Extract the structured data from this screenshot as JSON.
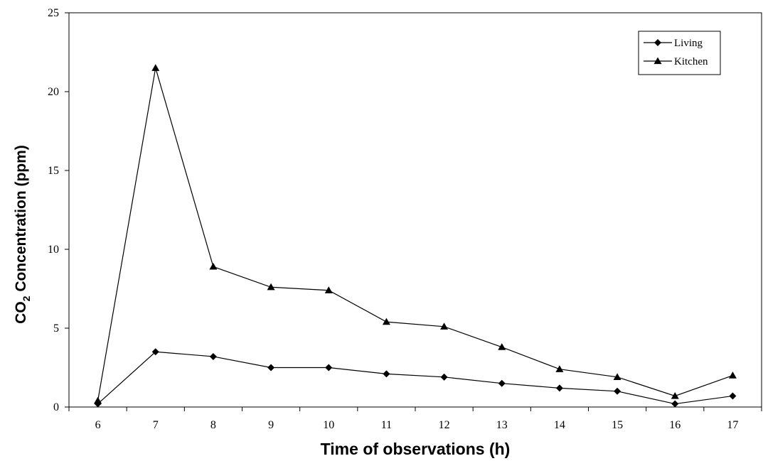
{
  "chart_data": {
    "type": "line",
    "x": [
      6,
      7,
      8,
      9,
      10,
      11,
      12,
      13,
      14,
      15,
      16,
      17
    ],
    "series": [
      {
        "name": "Living",
        "marker": "diamond",
        "values": [
          0.2,
          3.5,
          3.2,
          2.5,
          2.5,
          2.1,
          1.9,
          1.5,
          1.2,
          1.0,
          0.2,
          0.7
        ]
      },
      {
        "name": "Kitchen",
        "marker": "triangle",
        "values": [
          0.4,
          21.5,
          8.9,
          7.6,
          7.4,
          5.4,
          5.1,
          3.8,
          2.4,
          1.9,
          0.7,
          2.0
        ]
      }
    ],
    "xlabel": "Time of observations (h)",
    "ylabel_main": "CO",
    "ylabel_sub": "2",
    "ylabel_rest": " Concentration (ppm)",
    "ylim": [
      0,
      25
    ],
    "yticks": [
      0,
      5,
      10,
      15,
      20,
      25
    ],
    "xticks": [
      "6",
      "7",
      "8",
      "9",
      "10",
      "11",
      "12",
      "13",
      "14",
      "15",
      "16",
      "17"
    ],
    "grid": false,
    "legend": "top-right",
    "line_color": "#000000"
  }
}
